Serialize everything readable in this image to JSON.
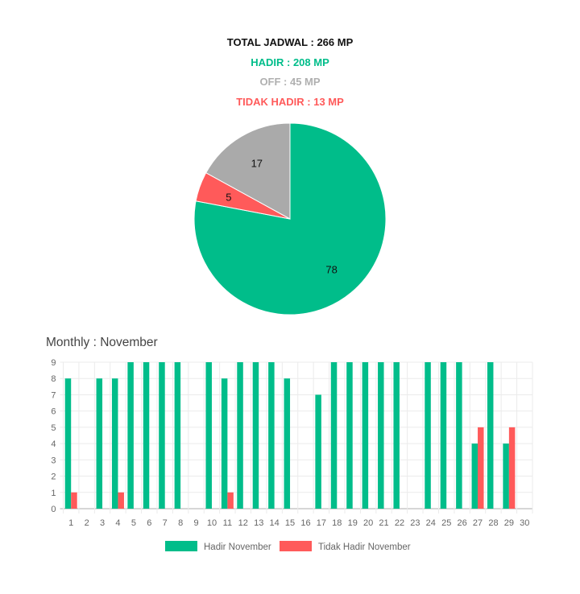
{
  "summary": {
    "total": "TOTAL JADWAL : 266 MP",
    "hadir": "HADIR : 208 MP",
    "off": "OFF : 45 MP",
    "tidak_hadir": "TIDAK HADIR : 13 MP"
  },
  "chart_data": [
    {
      "type": "pie",
      "labels": [
        "Hadir",
        "Tidak Hadir",
        "Off"
      ],
      "values": [
        78,
        5,
        17
      ],
      "value_labels": [
        "78",
        "5",
        "17"
      ],
      "colors": [
        "#00bd8a",
        "#ff5a5a",
        "#aaaaaa"
      ]
    },
    {
      "type": "bar",
      "title": "Monthly : November",
      "categories": [
        "1",
        "2",
        "3",
        "4",
        "5",
        "6",
        "7",
        "8",
        "9",
        "10",
        "11",
        "12",
        "13",
        "14",
        "15",
        "16",
        "17",
        "18",
        "19",
        "20",
        "21",
        "22",
        "23",
        "24",
        "25",
        "26",
        "27",
        "28",
        "29",
        "30"
      ],
      "series": [
        {
          "name": "Hadir November",
          "color": "#00bd8a",
          "values": [
            8,
            0,
            8,
            8,
            9,
            9,
            9,
            9,
            0,
            9,
            8,
            9,
            9,
            9,
            8,
            0,
            7,
            9,
            9,
            9,
            9,
            9,
            0,
            9,
            9,
            9,
            4,
            9,
            4,
            0
          ]
        },
        {
          "name": "Tidak Hadir November",
          "color": "#ff5a5a",
          "values": [
            1,
            0,
            0,
            1,
            0,
            0,
            0,
            0,
            0,
            0,
            1,
            0,
            0,
            0,
            0,
            0,
            0,
            0,
            0,
            0,
            0,
            0,
            0,
            0,
            0,
            0,
            5,
            0,
            5,
            0
          ]
        }
      ],
      "yticks": [
        "0",
        "1",
        "2",
        "3",
        "4",
        "5",
        "6",
        "7",
        "8",
        "9"
      ],
      "ylim": [
        0,
        9
      ],
      "grid": true,
      "legend": "bottom"
    }
  ]
}
